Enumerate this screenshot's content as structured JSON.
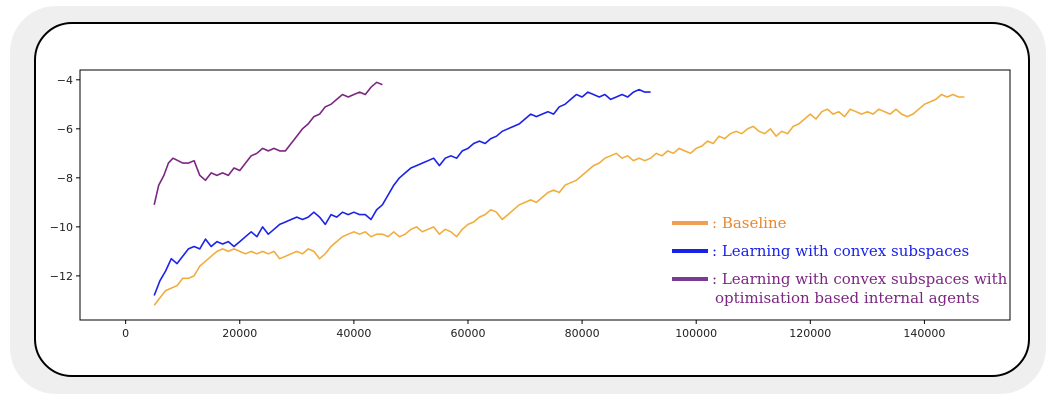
{
  "chart_data": {
    "type": "line",
    "title": "",
    "xlabel": "",
    "ylabel": "",
    "xlim": [
      -8000,
      155000
    ],
    "ylim": [
      -13.8,
      -3.6
    ],
    "xticks": [
      0,
      20000,
      40000,
      60000,
      80000,
      100000,
      120000,
      140000
    ],
    "yticks": [
      -12,
      -10,
      -8,
      -6,
      -4
    ],
    "grid": false,
    "legend_placement": "bottom-right",
    "series": [
      {
        "name": ": Baseline",
        "color": "#f0ad3d",
        "legend_color": "#f0a050",
        "label_color": "#e8872e",
        "points": [
          [
            5000,
            -13.2
          ],
          [
            6000,
            -12.9
          ],
          [
            7000,
            -12.6
          ],
          [
            8000,
            -12.5
          ],
          [
            9000,
            -12.4
          ],
          [
            10000,
            -12.1
          ],
          [
            11000,
            -12.1
          ],
          [
            12000,
            -12.0
          ],
          [
            13000,
            -11.6
          ],
          [
            14000,
            -11.4
          ],
          [
            15000,
            -11.2
          ],
          [
            16000,
            -11.0
          ],
          [
            17000,
            -10.9
          ],
          [
            18000,
            -11.0
          ],
          [
            19000,
            -10.9
          ],
          [
            20000,
            -11.0
          ],
          [
            21000,
            -11.1
          ],
          [
            22000,
            -11.0
          ],
          [
            23000,
            -11.1
          ],
          [
            24000,
            -11.0
          ],
          [
            25000,
            -11.1
          ],
          [
            26000,
            -11.0
          ],
          [
            27000,
            -11.3
          ],
          [
            28000,
            -11.2
          ],
          [
            29000,
            -11.1
          ],
          [
            30000,
            -11.0
          ],
          [
            31000,
            -11.1
          ],
          [
            32000,
            -10.9
          ],
          [
            33000,
            -11.0
          ],
          [
            34000,
            -11.3
          ],
          [
            35000,
            -11.1
          ],
          [
            36000,
            -10.8
          ],
          [
            37000,
            -10.6
          ],
          [
            38000,
            -10.4
          ],
          [
            39000,
            -10.3
          ],
          [
            40000,
            -10.2
          ],
          [
            41000,
            -10.3
          ],
          [
            42000,
            -10.2
          ],
          [
            43000,
            -10.4
          ],
          [
            44000,
            -10.3
          ],
          [
            45000,
            -10.3
          ],
          [
            46000,
            -10.4
          ],
          [
            47000,
            -10.2
          ],
          [
            48000,
            -10.4
          ],
          [
            49000,
            -10.3
          ],
          [
            50000,
            -10.1
          ],
          [
            51000,
            -10.0
          ],
          [
            52000,
            -10.2
          ],
          [
            53000,
            -10.1
          ],
          [
            54000,
            -10.0
          ],
          [
            55000,
            -10.3
          ],
          [
            56000,
            -10.1
          ],
          [
            57000,
            -10.2
          ],
          [
            58000,
            -10.4
          ],
          [
            59000,
            -10.1
          ],
          [
            60000,
            -9.9
          ],
          [
            61000,
            -9.8
          ],
          [
            62000,
            -9.6
          ],
          [
            63000,
            -9.5
          ],
          [
            64000,
            -9.3
          ],
          [
            65000,
            -9.4
          ],
          [
            66000,
            -9.7
          ],
          [
            67000,
            -9.5
          ],
          [
            68000,
            -9.3
          ],
          [
            69000,
            -9.1
          ],
          [
            70000,
            -9.0
          ],
          [
            71000,
            -8.9
          ],
          [
            72000,
            -9.0
          ],
          [
            73000,
            -8.8
          ],
          [
            74000,
            -8.6
          ],
          [
            75000,
            -8.5
          ],
          [
            76000,
            -8.6
          ],
          [
            77000,
            -8.3
          ],
          [
            78000,
            -8.2
          ],
          [
            79000,
            -8.1
          ],
          [
            80000,
            -7.9
          ],
          [
            81000,
            -7.7
          ],
          [
            82000,
            -7.5
          ],
          [
            83000,
            -7.4
          ],
          [
            84000,
            -7.2
          ],
          [
            85000,
            -7.1
          ],
          [
            86000,
            -7.0
          ],
          [
            87000,
            -7.2
          ],
          [
            88000,
            -7.1
          ],
          [
            89000,
            -7.3
          ],
          [
            90000,
            -7.2
          ],
          [
            91000,
            -7.3
          ],
          [
            92000,
            -7.2
          ],
          [
            93000,
            -7.0
          ],
          [
            94000,
            -7.1
          ],
          [
            95000,
            -6.9
          ],
          [
            96000,
            -7.0
          ],
          [
            97000,
            -6.8
          ],
          [
            98000,
            -6.9
          ],
          [
            99000,
            -7.0
          ],
          [
            100000,
            -6.8
          ],
          [
            101000,
            -6.7
          ],
          [
            102000,
            -6.5
          ],
          [
            103000,
            -6.6
          ],
          [
            104000,
            -6.3
          ],
          [
            105000,
            -6.4
          ],
          [
            106000,
            -6.2
          ],
          [
            107000,
            -6.1
          ],
          [
            108000,
            -6.2
          ],
          [
            109000,
            -6.0
          ],
          [
            110000,
            -5.9
          ],
          [
            111000,
            -6.1
          ],
          [
            112000,
            -6.2
          ],
          [
            113000,
            -6.0
          ],
          [
            114000,
            -6.3
          ],
          [
            115000,
            -6.1
          ],
          [
            116000,
            -6.2
          ],
          [
            117000,
            -5.9
          ],
          [
            118000,
            -5.8
          ],
          [
            119000,
            -5.6
          ],
          [
            120000,
            -5.4
          ],
          [
            121000,
            -5.6
          ],
          [
            122000,
            -5.3
          ],
          [
            123000,
            -5.2
          ],
          [
            124000,
            -5.4
          ],
          [
            125000,
            -5.3
          ],
          [
            126000,
            -5.5
          ],
          [
            127000,
            -5.2
          ],
          [
            128000,
            -5.3
          ],
          [
            129000,
            -5.4
          ],
          [
            130000,
            -5.3
          ],
          [
            131000,
            -5.4
          ],
          [
            132000,
            -5.2
          ],
          [
            133000,
            -5.3
          ],
          [
            134000,
            -5.4
          ],
          [
            135000,
            -5.2
          ],
          [
            136000,
            -5.4
          ],
          [
            137000,
            -5.5
          ],
          [
            138000,
            -5.4
          ],
          [
            139000,
            -5.2
          ],
          [
            140000,
            -5.0
          ],
          [
            141000,
            -4.9
          ],
          [
            142000,
            -4.8
          ],
          [
            143000,
            -4.6
          ],
          [
            144000,
            -4.7
          ],
          [
            145000,
            -4.6
          ],
          [
            146000,
            -4.7
          ],
          [
            147000,
            -4.7
          ]
        ]
      },
      {
        "name": ": Learning with convex subspaces",
        "color": "#1a22e8",
        "legend_color": "#1a22e8",
        "label_color": "#1a22e8",
        "points": [
          [
            5000,
            -12.8
          ],
          [
            6000,
            -12.2
          ],
          [
            7000,
            -11.8
          ],
          [
            8000,
            -11.3
          ],
          [
            9000,
            -11.5
          ],
          [
            10000,
            -11.2
          ],
          [
            11000,
            -10.9
          ],
          [
            12000,
            -10.8
          ],
          [
            13000,
            -10.9
          ],
          [
            14000,
            -10.5
          ],
          [
            15000,
            -10.8
          ],
          [
            16000,
            -10.6
          ],
          [
            17000,
            -10.7
          ],
          [
            18000,
            -10.6
          ],
          [
            19000,
            -10.8
          ],
          [
            20000,
            -10.6
          ],
          [
            21000,
            -10.4
          ],
          [
            22000,
            -10.2
          ],
          [
            23000,
            -10.4
          ],
          [
            24000,
            -10.0
          ],
          [
            25000,
            -10.3
          ],
          [
            26000,
            -10.1
          ],
          [
            27000,
            -9.9
          ],
          [
            28000,
            -9.8
          ],
          [
            29000,
            -9.7
          ],
          [
            30000,
            -9.6
          ],
          [
            31000,
            -9.7
          ],
          [
            32000,
            -9.6
          ],
          [
            33000,
            -9.4
          ],
          [
            34000,
            -9.6
          ],
          [
            35000,
            -9.9
          ],
          [
            36000,
            -9.5
          ],
          [
            37000,
            -9.6
          ],
          [
            38000,
            -9.4
          ],
          [
            39000,
            -9.5
          ],
          [
            40000,
            -9.4
          ],
          [
            41000,
            -9.5
          ],
          [
            42000,
            -9.5
          ],
          [
            43000,
            -9.7
          ],
          [
            44000,
            -9.3
          ],
          [
            45000,
            -9.1
          ],
          [
            46000,
            -8.7
          ],
          [
            47000,
            -8.3
          ],
          [
            48000,
            -8.0
          ],
          [
            49000,
            -7.8
          ],
          [
            50000,
            -7.6
          ],
          [
            51000,
            -7.5
          ],
          [
            52000,
            -7.4
          ],
          [
            53000,
            -7.3
          ],
          [
            54000,
            -7.2
          ],
          [
            55000,
            -7.5
          ],
          [
            56000,
            -7.2
          ],
          [
            57000,
            -7.1
          ],
          [
            58000,
            -7.2
          ],
          [
            59000,
            -6.9
          ],
          [
            60000,
            -6.8
          ],
          [
            61000,
            -6.6
          ],
          [
            62000,
            -6.5
          ],
          [
            63000,
            -6.6
          ],
          [
            64000,
            -6.4
          ],
          [
            65000,
            -6.3
          ],
          [
            66000,
            -6.1
          ],
          [
            67000,
            -6.0
          ],
          [
            68000,
            -5.9
          ],
          [
            69000,
            -5.8
          ],
          [
            70000,
            -5.6
          ],
          [
            71000,
            -5.4
          ],
          [
            72000,
            -5.5
          ],
          [
            73000,
            -5.4
          ],
          [
            74000,
            -5.3
          ],
          [
            75000,
            -5.4
          ],
          [
            76000,
            -5.1
          ],
          [
            77000,
            -5.0
          ],
          [
            78000,
            -4.8
          ],
          [
            79000,
            -4.6
          ],
          [
            80000,
            -4.7
          ],
          [
            81000,
            -4.5
          ],
          [
            82000,
            -4.6
          ],
          [
            83000,
            -4.7
          ],
          [
            84000,
            -4.6
          ],
          [
            85000,
            -4.8
          ],
          [
            86000,
            -4.7
          ],
          [
            87000,
            -4.6
          ],
          [
            88000,
            -4.7
          ],
          [
            89000,
            -4.5
          ],
          [
            90000,
            -4.4
          ],
          [
            91000,
            -4.5
          ],
          [
            92000,
            -4.5
          ]
        ]
      },
      {
        "name": ": Learning with convex subspaces with optimisation based internal agents",
        "name_lines": [
          ": Learning with convex subspaces with",
          "optimisation based internal agents"
        ],
        "color": "#7b2680",
        "legend_color": "#7b3a93",
        "label_color": "#7b2680",
        "points": [
          [
            5000,
            -9.1
          ],
          [
            5800,
            -8.3
          ],
          [
            6700,
            -7.9
          ],
          [
            7500,
            -7.4
          ],
          [
            8300,
            -7.2
          ],
          [
            9200,
            -7.3
          ],
          [
            10000,
            -7.4
          ],
          [
            11000,
            -7.4
          ],
          [
            12000,
            -7.3
          ],
          [
            13000,
            -7.9
          ],
          [
            14000,
            -8.1
          ],
          [
            15000,
            -7.8
          ],
          [
            16000,
            -7.9
          ],
          [
            17000,
            -7.8
          ],
          [
            18000,
            -7.9
          ],
          [
            19000,
            -7.6
          ],
          [
            20000,
            -7.7
          ],
          [
            21000,
            -7.4
          ],
          [
            22000,
            -7.1
          ],
          [
            23000,
            -7.0
          ],
          [
            24000,
            -6.8
          ],
          [
            25000,
            -6.9
          ],
          [
            26000,
            -6.8
          ],
          [
            27000,
            -6.9
          ],
          [
            28000,
            -6.9
          ],
          [
            29000,
            -6.6
          ],
          [
            30000,
            -6.3
          ],
          [
            31000,
            -6.0
          ],
          [
            32000,
            -5.8
          ],
          [
            33000,
            -5.5
          ],
          [
            34000,
            -5.4
          ],
          [
            35000,
            -5.1
          ],
          [
            36000,
            -5.0
          ],
          [
            37000,
            -4.8
          ],
          [
            38000,
            -4.6
          ],
          [
            39000,
            -4.7
          ],
          [
            40000,
            -4.6
          ],
          [
            41000,
            -4.5
          ],
          [
            42000,
            -4.6
          ],
          [
            43000,
            -4.3
          ],
          [
            44000,
            -4.1
          ],
          [
            45000,
            -4.2
          ]
        ]
      }
    ]
  }
}
